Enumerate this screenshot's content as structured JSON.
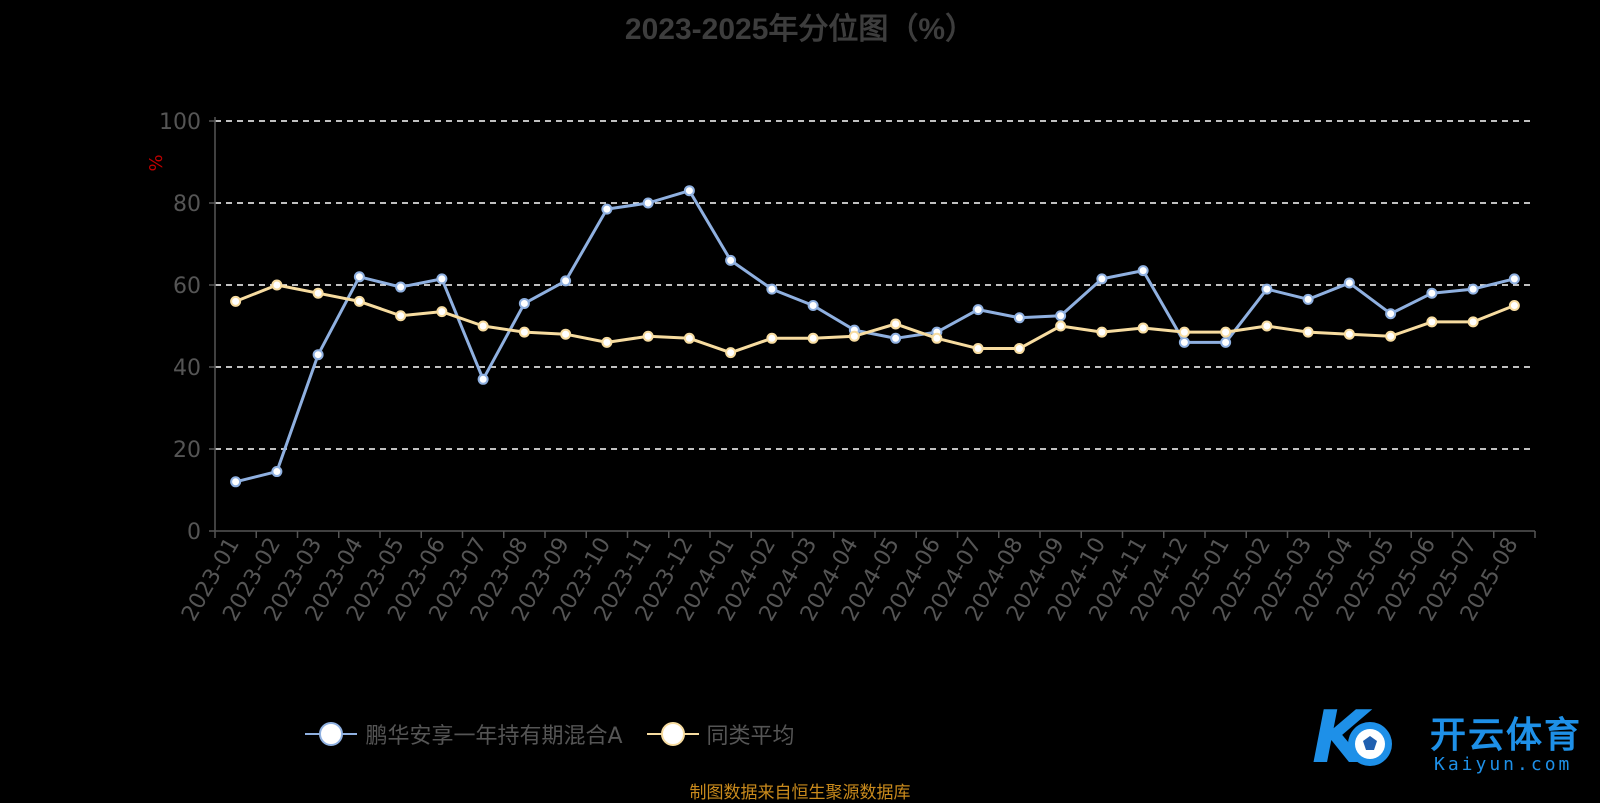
{
  "title": "2023-2025年分位图（%）",
  "source_note": "制图数据来自恒生聚源数据库",
  "watermark": {
    "text": "开云体育",
    "sub": "Kaiyun.com",
    "icon": "k-soccer-ball-logo"
  },
  "colors": {
    "fund": "#8fb0e0",
    "average": "#f7dca0",
    "axis": "#555555",
    "grid": "#ffffff",
    "unit": "#c00000"
  },
  "chart_data": {
    "type": "line",
    "ylabel": "%",
    "ylim": [
      0,
      100
    ],
    "yticks": [
      0,
      20,
      40,
      60,
      80,
      100
    ],
    "grid": "horizontal dashed",
    "legend_position": "bottom",
    "x": [
      "2023-01",
      "2023-02",
      "2023-03",
      "2023-04",
      "2023-05",
      "2023-06",
      "2023-07",
      "2023-08",
      "2023-09",
      "2023-10",
      "2023-11",
      "2023-12",
      "2024-01",
      "2024-02",
      "2024-03",
      "2024-04",
      "2024-05",
      "2024-06",
      "2024-07",
      "2024-08",
      "2024-09",
      "2024-10",
      "2024-11",
      "2024-12",
      "2025-01",
      "2025-02",
      "2025-03",
      "2025-04",
      "2025-05",
      "2025-06",
      "2025-07",
      "2025-08"
    ],
    "series": [
      {
        "name": "鹏华安享一年持有期混合A",
        "values": [
          12,
          14.5,
          43,
          62,
          59.5,
          61.5,
          37,
          55.5,
          61,
          78.5,
          80,
          83,
          66,
          59,
          55,
          49,
          47,
          48.5,
          54,
          52,
          52.5,
          61.5,
          63.5,
          46,
          46,
          59,
          56.5,
          60.5,
          53,
          58,
          59,
          61.5
        ]
      },
      {
        "name": "同类平均",
        "values": [
          56,
          60,
          58,
          56,
          52.5,
          53.5,
          50,
          48.5,
          48,
          46,
          47.5,
          47,
          43.5,
          47,
          47,
          47.5,
          50.5,
          47,
          44.5,
          44.5,
          50,
          48.5,
          49.5,
          48.5,
          48.5,
          50,
          48.5,
          48,
          47.5,
          51,
          51,
          55
        ]
      }
    ]
  }
}
